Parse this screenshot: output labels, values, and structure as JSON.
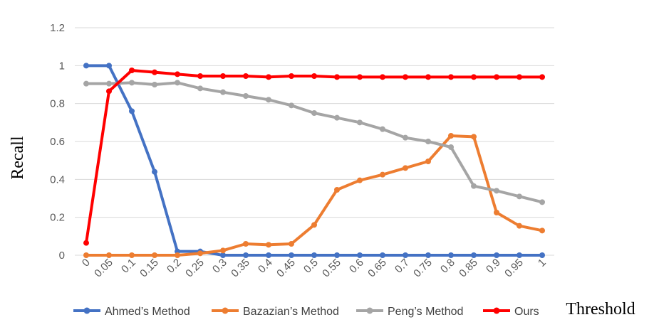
{
  "chart_data": {
    "type": "line",
    "xlabel": "Threshold",
    "ylabel": "Recall",
    "ylim": [
      0,
      1.2
    ],
    "yticks": [
      "0",
      "0.2",
      "0.4",
      "0.6",
      "0.8",
      "1",
      "1.2"
    ],
    "categories": [
      "0",
      "0.05",
      "0.1",
      "0.15",
      "0.2",
      "0.25",
      "0.3",
      "0.35",
      "0.4",
      "0.45",
      "0.5",
      "0.55",
      "0.6",
      "0.65",
      "0.7",
      "0.75",
      "0.8",
      "0.85",
      "0.9",
      "0.95",
      "1"
    ],
    "grid": true,
    "legend_position": "bottom",
    "series": [
      {
        "name": "Ahmed’s Method",
        "color": "#4472C4",
        "values": [
          1.0,
          1.0,
          0.76,
          0.44,
          0.02,
          0.02,
          0,
          0,
          0,
          0,
          0,
          0,
          0,
          0,
          0,
          0,
          0,
          0,
          0,
          0,
          0
        ]
      },
      {
        "name": "Bazazian’s Method",
        "color": "#ED7D31",
        "values": [
          0,
          0,
          0,
          0,
          0,
          0.01,
          0.025,
          0.06,
          0.055,
          0.06,
          0.16,
          0.345,
          0.395,
          0.425,
          0.46,
          0.495,
          0.63,
          0.625,
          0.225,
          0.155,
          0.13
        ]
      },
      {
        "name": "Peng’s Method",
        "color": "#A5A5A5",
        "values": [
          0.905,
          0.905,
          0.91,
          0.9,
          0.91,
          0.88,
          0.86,
          0.84,
          0.82,
          0.79,
          0.75,
          0.725,
          0.7,
          0.665,
          0.62,
          0.6,
          0.57,
          0.365,
          0.34,
          0.31,
          0.28
        ]
      },
      {
        "name": "Ours",
        "color": "#FF0000",
        "values": [
          0.065,
          0.865,
          0.975,
          0.965,
          0.955,
          0.945,
          0.945,
          0.945,
          0.94,
          0.945,
          0.945,
          0.94,
          0.94,
          0.94,
          0.94,
          0.94,
          0.94,
          0.94,
          0.94,
          0.94,
          0.94
        ]
      }
    ]
  }
}
